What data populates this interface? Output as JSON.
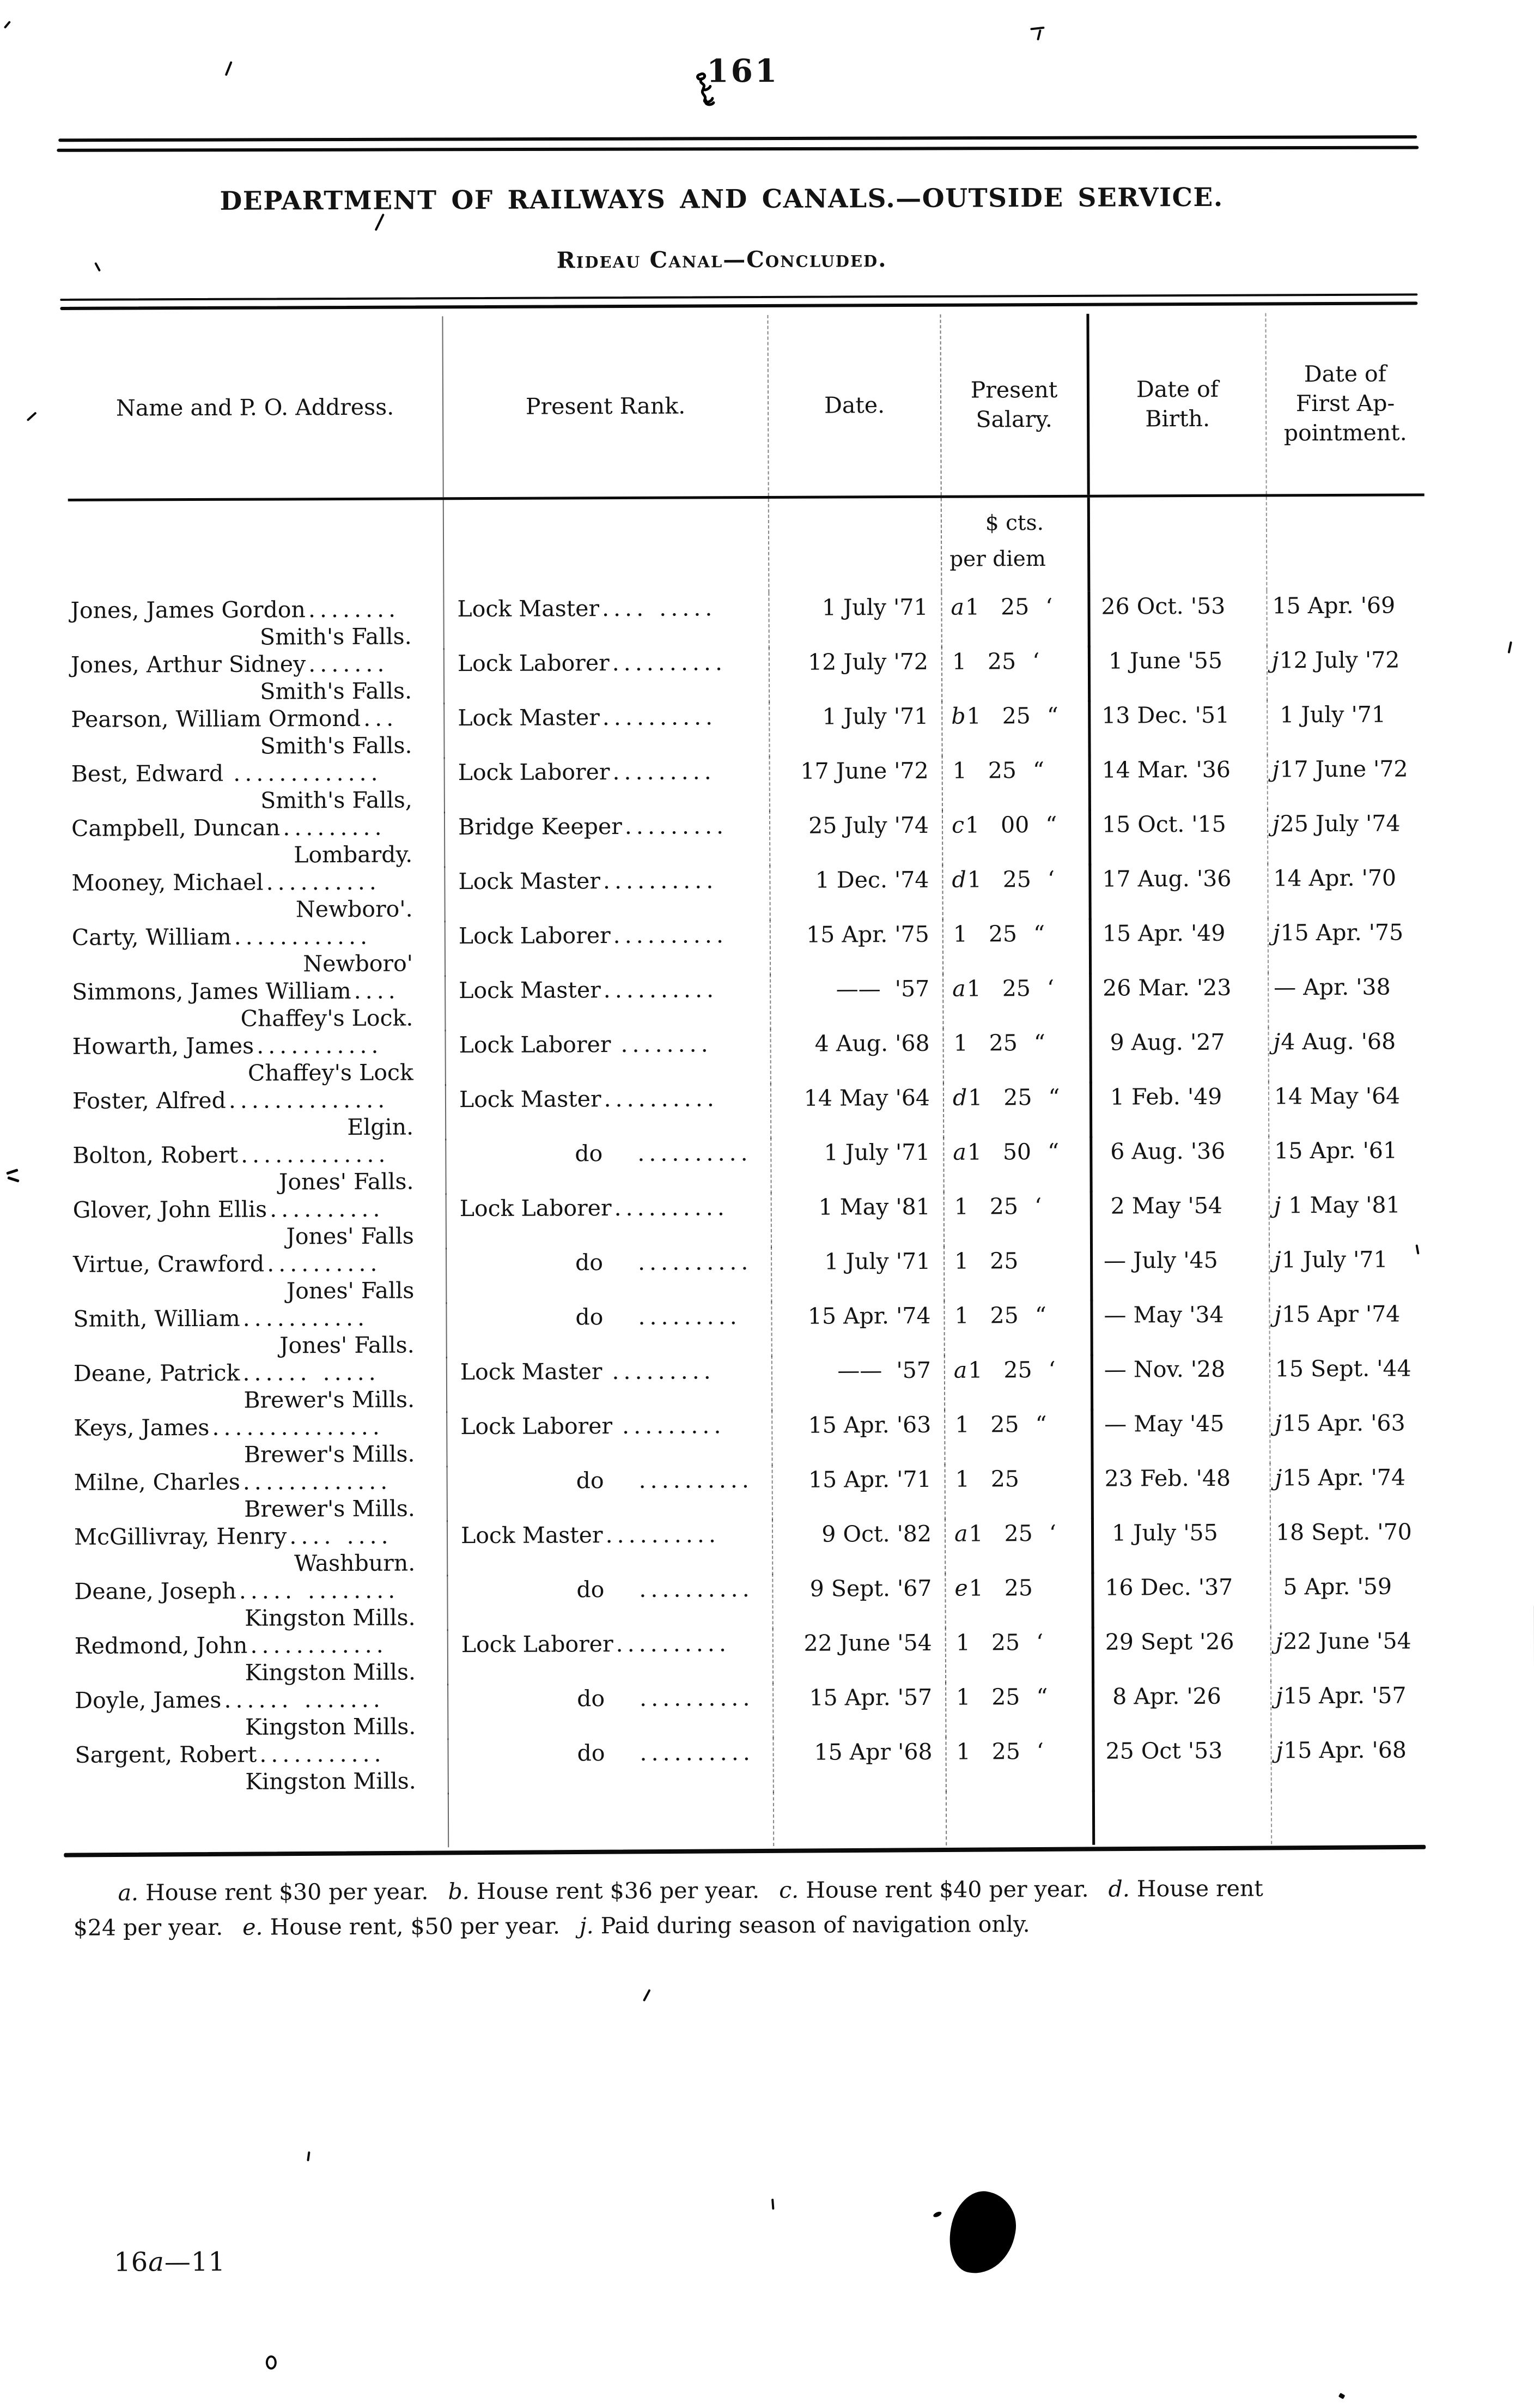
{
  "page": {
    "number": "161",
    "title": "DEPARTMENT OF RAILWAYS AND CANALS.—OUTSIDE SERVICE.",
    "subtitle": "Rideau Canal—Concluded.",
    "footer_signature": {
      "pre": "16",
      "italic": "a",
      "post": "—11"
    }
  },
  "table": {
    "columns": [
      "Name and P. O. Address.",
      "Present Rank.",
      "Date.",
      "Present\nSalary.",
      "Date of\nBirth.",
      "Date of\nFirst Ap-\npointment."
    ],
    "salary_unit": "$ cts.",
    "salary_unit_2": "per diem",
    "rows": [
      {
        "name": "Jones, James Gordon",
        "leader": "........",
        "address": "Smith's Falls.",
        "rank": "Lock Master",
        "rank_dots": ".... .....",
        "date": "1 July '71",
        "salary_note": "a",
        "salary": "1 25",
        "salary_ditto": "‘",
        "birth": "26 Oct. '53",
        "appt_note": "",
        "appt": "15 Apr. '69"
      },
      {
        "name": "Jones, Arthur Sidney",
        "leader": ".......",
        "address": "Smith's Falls.",
        "rank": "Lock Laborer",
        "rank_dots": "..........",
        "date": "12 July '72",
        "salary_note": "",
        "salary": "1 25",
        "salary_ditto": "‘",
        "birth": " 1 June '55",
        "appt_note": "j",
        "appt": "12 July '72"
      },
      {
        "name": "Pearson, William Ormond",
        "leader": "...",
        "address": "Smith's Falls.",
        "rank": "Lock Master",
        "rank_dots": "..........",
        "date": "1 July '71",
        "salary_note": "b",
        "salary": "1 25",
        "salary_ditto": "“",
        "birth": "13 Dec. '51",
        "appt_note": "",
        "appt": " 1 July '71"
      },
      {
        "name": "Best, Edward ",
        "leader": ".............",
        "address": "Smith's Falls,",
        "rank": "Lock Laborer",
        "rank_dots": ".........",
        "date": "17 June '72",
        "salary_note": "",
        "salary": "1 25",
        "salary_ditto": "“",
        "birth": "14 Mar. '36",
        "appt_note": "j",
        "appt": "17 June '72"
      },
      {
        "name": "Campbell, Duncan",
        "leader": ".........",
        "address": "Lombardy.",
        "rank": "Bridge Keeper",
        "rank_dots": ".........",
        "date": "25 July '74",
        "salary_note": "c",
        "salary": "1 00",
        "salary_ditto": "“",
        "birth": "15 Oct. '15",
        "appt_note": "j",
        "appt": "25 July '74"
      },
      {
        "name": "Mooney, Michael",
        "leader": "..........",
        "address": "Newboro'.",
        "rank": "Lock Master",
        "rank_dots": "..........",
        "date": "1 Dec. '74",
        "salary_note": "d",
        "salary": "1 25",
        "salary_ditto": "‘",
        "birth": "17 Aug. '36",
        "appt_note": "",
        "appt": "14 Apr. '70"
      },
      {
        "name": "Carty, William",
        "leader": "............",
        "address": "Newboro'",
        "rank": "Lock Laborer",
        "rank_dots": "..........",
        "date": "15 Apr. '75",
        "salary_note": "",
        "salary": "1 25",
        "salary_ditto": "“",
        "birth": "15 Apr. '49",
        "appt_note": "j",
        "appt": "15 Apr. '75"
      },
      {
        "name": "Simmons, James William",
        "leader": "....",
        "address": "Chaffey's Lock.",
        "rank": "Lock Master",
        "rank_dots": "..........",
        "date": "——  '57",
        "salary_note": "a",
        "salary": "1 25",
        "salary_ditto": "‘",
        "birth": "26 Mar. '23",
        "appt_note": "",
        "appt": "— Apr. '38"
      },
      {
        "name": "Howarth, James",
        "leader": "...........",
        "address": "Chaffey's Lock",
        "rank": "Lock Laborer ",
        "rank_dots": "........",
        "date": "4 Aug. '68",
        "salary_note": "",
        "salary": "1 25",
        "salary_ditto": "“",
        "birth": " 9 Aug. '27",
        "appt_note": "j",
        "appt": "4 Aug. '68"
      },
      {
        "name": "Foster, Alfred",
        "leader": "..............",
        "address": "Elgin.",
        "rank": "Lock Master",
        "rank_dots": "..........",
        "date": "14 May '64",
        "salary_note": "d",
        "salary": "1 25",
        "salary_ditto": "“",
        "birth": " 1 Feb. '49",
        "appt_note": "",
        "appt": "14 May '64"
      },
      {
        "name": "Bolton, Robert",
        "leader": ".............",
        "address": "Jones' Falls.",
        "rank": "do",
        "rank_dots": "..........",
        "date": "1 July '71",
        "salary_note": "a",
        "salary": "1 50",
        "salary_ditto": "“",
        "birth": " 6 Aug. '36",
        "appt_note": "",
        "appt": "15 Apr. '61"
      },
      {
        "name": "Glover, John Ellis",
        "leader": "..........",
        "address": "Jones' Falls",
        "rank": "Lock Laborer",
        "rank_dots": "..........",
        "date": "1 May '81",
        "salary_note": "",
        "salary": "1 25",
        "salary_ditto": "‘",
        "birth": " 2 May '54",
        "appt_note": "j",
        "appt": " 1 May '81"
      },
      {
        "name": "Virtue, Crawford",
        "leader": "..........",
        "address": "Jones' Falls",
        "rank": "do",
        "rank_dots": "..........",
        "date": "1 July '71",
        "salary_note": "",
        "salary": "1 25",
        "salary_ditto": "",
        "birth": "— July '45",
        "appt_note": "j",
        "appt": "1 July '71"
      },
      {
        "name": "Smith, William",
        "leader": "...........",
        "address": "Jones' Falls.",
        "rank": "do",
        "rank_dots": ".........",
        "date": "15 Apr. '74",
        "salary_note": "",
        "salary": "1 25",
        "salary_ditto": "“",
        "birth": "— May '34",
        "appt_note": "j",
        "appt": "15 Apr '74"
      },
      {
        "name": "Deane, Patrick",
        "leader": "...... .....",
        "address": "Brewer's Mills.",
        "rank": "Lock Master ",
        "rank_dots": ".........",
        "date": "——  '57",
        "salary_note": "a",
        "salary": "1 25",
        "salary_ditto": "‘",
        "birth": "— Nov. '28",
        "appt_note": "",
        "appt": "15 Sept. '44"
      },
      {
        "name": "Keys, James",
        "leader": "...............",
        "address": "Brewer's Mills.",
        "rank": "Lock Laborer ",
        "rank_dots": ".........",
        "date": "15 Apr. '63",
        "salary_note": "",
        "salary": "1 25",
        "salary_ditto": "“",
        "birth": "— May '45",
        "appt_note": "j",
        "appt": "15 Apr. '63"
      },
      {
        "name": "Milne, Charles",
        "leader": ".............",
        "address": "Brewer's Mills.",
        "rank": "do",
        "rank_dots": "..........",
        "date": "15 Apr. '71",
        "salary_note": "",
        "salary": "1 25",
        "salary_ditto": "",
        "birth": "23 Feb. '48",
        "appt_note": "j",
        "appt": "15 Apr. '74"
      },
      {
        "name": "McGillivray, Henry",
        "leader": ".... ....",
        "address": "Washburn.",
        "rank": "Lock Master",
        "rank_dots": "..........",
        "date": "9 Oct. '82",
        "salary_note": "a",
        "salary": "1 25",
        "salary_ditto": "‘",
        "birth": " 1 July '55",
        "appt_note": "",
        "appt": "18 Sept. '70"
      },
      {
        "name": "Deane, Joseph",
        "leader": "..... ........",
        "address": "Kingston Mills.",
        "rank": "do",
        "rank_dots": "..........",
        "date": "9 Sept. '67",
        "salary_note": "e",
        "salary": "1 25",
        "salary_ditto": "",
        "birth": "16 Dec. '37",
        "appt_note": "",
        "appt": " 5 Apr. '59"
      },
      {
        "name": "Redmond, John",
        "leader": "............",
        "address": "Kingston Mills.",
        "rank": "Lock Laborer",
        "rank_dots": "..........",
        "date": "22 June '54",
        "salary_note": "",
        "salary": "1 25",
        "salary_ditto": "‘",
        "birth": "29 Sept '26",
        "appt_note": "j",
        "appt": "22 June '54"
      },
      {
        "name": "Doyle, James",
        "leader": "...... .......",
        "address": "Kingston Mills.",
        "rank": "do",
        "rank_dots": "..........",
        "date": "15 Apr. '57",
        "salary_note": "",
        "salary": "1 25",
        "salary_ditto": "“",
        "birth": " 8 Apr. '26",
        "appt_note": "j",
        "appt": "15 Apr. '57"
      },
      {
        "name": "Sargent, Robert",
        "leader": "...........",
        "address": "Kingston Mills.",
        "rank": "do",
        "rank_dots": "..........",
        "date": "15 Apr '68",
        "salary_note": "",
        "salary": "1 25",
        "salary_ditto": "‘",
        "birth": "25 Oct '53",
        "appt_note": "j",
        "appt": "15 Apr. '68"
      }
    ]
  },
  "footnotes": [
    {
      "note": "a.",
      "text": "House rent $30 per year."
    },
    {
      "note": "b.",
      "text": "House rent $36 per year."
    },
    {
      "note": "c.",
      "text": "House rent $40 per year."
    },
    {
      "note": "d.",
      "text": "House rent\n$24 per year."
    },
    {
      "note": "e.",
      "text": "House rent, $50 per year."
    },
    {
      "note": "j.",
      "text": "Paid during season of navigation only."
    }
  ]
}
